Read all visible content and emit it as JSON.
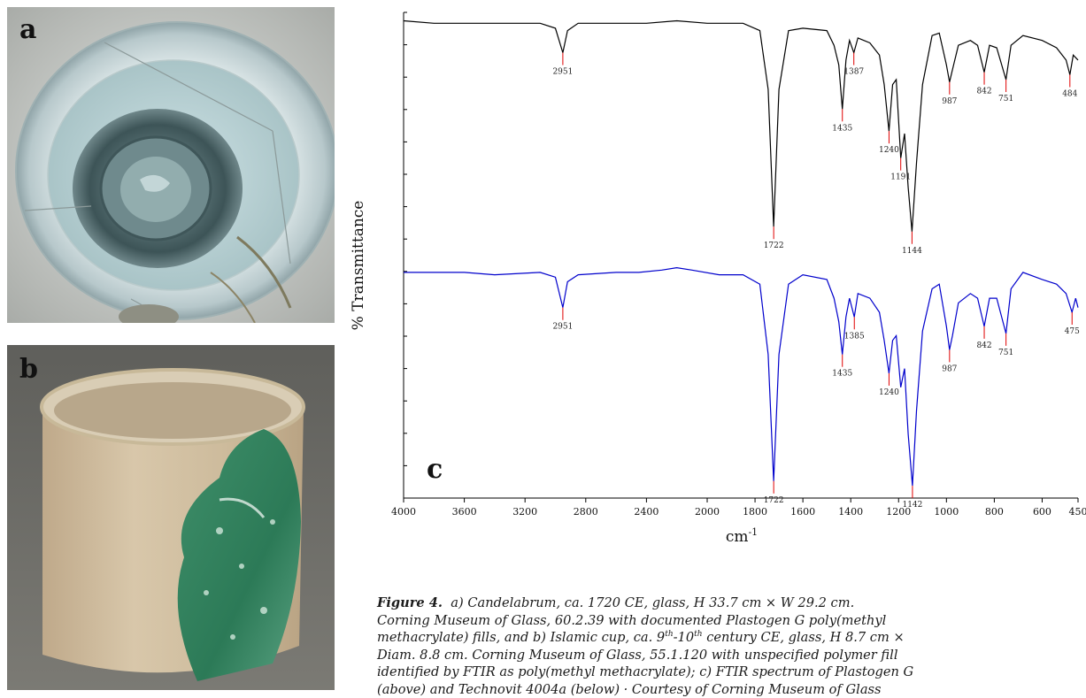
{
  "panels": {
    "a_label": "a",
    "b_label": "b",
    "c_label": "c"
  },
  "chart_data": {
    "type": "line",
    "xlabel": "cm",
    "xlabel_sup": "-1",
    "ylabel": "% Transmittance",
    "xlim": [
      4000,
      450
    ],
    "x_ticks": [
      4000,
      3600,
      3200,
      2800,
      2400,
      2000,
      1800,
      1600,
      1400,
      1200,
      1000,
      800,
      600,
      450
    ],
    "grid": false,
    "series": [
      {
        "color": "#000000",
        "peak_labels": [
          "2951",
          "1722",
          "1435",
          "1387",
          "1240",
          "1191",
          "1144",
          "987",
          "842",
          "751",
          "484"
        ],
        "points": [
          [
            4000,
            98
          ],
          [
            3800,
            97
          ],
          [
            3600,
            97
          ],
          [
            3400,
            97
          ],
          [
            3100,
            97
          ],
          [
            3000,
            95
          ],
          [
            2951,
            85
          ],
          [
            2920,
            94
          ],
          [
            2850,
            97
          ],
          [
            2400,
            97
          ],
          [
            2200,
            98
          ],
          [
            2000,
            97
          ],
          [
            1850,
            97
          ],
          [
            1780,
            94
          ],
          [
            1745,
            70
          ],
          [
            1722,
            14
          ],
          [
            1700,
            70
          ],
          [
            1660,
            94
          ],
          [
            1600,
            95
          ],
          [
            1500,
            94
          ],
          [
            1470,
            88
          ],
          [
            1450,
            80
          ],
          [
            1435,
            62
          ],
          [
            1420,
            82
          ],
          [
            1405,
            90
          ],
          [
            1387,
            85
          ],
          [
            1370,
            91
          ],
          [
            1320,
            89
          ],
          [
            1280,
            84
          ],
          [
            1260,
            72
          ],
          [
            1240,
            53
          ],
          [
            1225,
            72
          ],
          [
            1210,
            74
          ],
          [
            1191,
            42
          ],
          [
            1175,
            52
          ],
          [
            1160,
            30
          ],
          [
            1144,
            12
          ],
          [
            1125,
            40
          ],
          [
            1100,
            72
          ],
          [
            1060,
            92
          ],
          [
            1030,
            93
          ],
          [
            1000,
            80
          ],
          [
            987,
            73
          ],
          [
            975,
            78
          ],
          [
            950,
            88
          ],
          [
            900,
            90
          ],
          [
            870,
            88
          ],
          [
            842,
            77
          ],
          [
            820,
            88
          ],
          [
            790,
            87
          ],
          [
            751,
            74
          ],
          [
            730,
            88
          ],
          [
            680,
            92
          ],
          [
            600,
            90
          ],
          [
            540,
            87
          ],
          [
            500,
            82
          ],
          [
            484,
            76
          ],
          [
            470,
            84
          ],
          [
            450,
            82
          ]
        ]
      },
      {
        "color": "#0000cc",
        "peak_labels": [
          "2951",
          "1722",
          "1435",
          "1385",
          "1240",
          "1142",
          "987",
          "842",
          "751",
          "475"
        ],
        "points": [
          [
            4000,
            97
          ],
          [
            3800,
            97
          ],
          [
            3600,
            97
          ],
          [
            3400,
            96
          ],
          [
            3100,
            97
          ],
          [
            3000,
            95
          ],
          [
            2951,
            82
          ],
          [
            2920,
            93
          ],
          [
            2850,
            96
          ],
          [
            2600,
            97
          ],
          [
            2450,
            97
          ],
          [
            2300,
            98
          ],
          [
            2200,
            99
          ],
          [
            2100,
            98
          ],
          [
            1950,
            96
          ],
          [
            1850,
            96
          ],
          [
            1780,
            92
          ],
          [
            1745,
            62
          ],
          [
            1722,
            8
          ],
          [
            1700,
            62
          ],
          [
            1660,
            92
          ],
          [
            1600,
            96
          ],
          [
            1500,
            94
          ],
          [
            1470,
            86
          ],
          [
            1450,
            76
          ],
          [
            1435,
            62
          ],
          [
            1420,
            78
          ],
          [
            1405,
            86
          ],
          [
            1385,
            78
          ],
          [
            1370,
            88
          ],
          [
            1320,
            86
          ],
          [
            1280,
            80
          ],
          [
            1260,
            68
          ],
          [
            1240,
            54
          ],
          [
            1225,
            68
          ],
          [
            1210,
            70
          ],
          [
            1191,
            48
          ],
          [
            1175,
            56
          ],
          [
            1160,
            28
          ],
          [
            1142,
            6
          ],
          [
            1125,
            38
          ],
          [
            1100,
            72
          ],
          [
            1060,
            90
          ],
          [
            1030,
            92
          ],
          [
            1000,
            74
          ],
          [
            987,
            64
          ],
          [
            975,
            70
          ],
          [
            950,
            84
          ],
          [
            900,
            88
          ],
          [
            870,
            86
          ],
          [
            842,
            74
          ],
          [
            820,
            86
          ],
          [
            790,
            86
          ],
          [
            751,
            71
          ],
          [
            730,
            90
          ],
          [
            680,
            97
          ],
          [
            600,
            94
          ],
          [
            540,
            92
          ],
          [
            500,
            88
          ],
          [
            475,
            80
          ],
          [
            460,
            86
          ],
          [
            450,
            82
          ]
        ]
      }
    ]
  },
  "caption": {
    "fig_label": "Figure 4.",
    "line1": "a) Candelabrum, ca. 1720 CE, glass, H 33.7 cm × W 29.2 cm.",
    "line2": "Corning Museum of Glass, 60.2.39 with documented Plastogen G poly(methyl",
    "line3a": "methacrylate) fills, and  b) Islamic cup, ca. 9",
    "line3_sup1": "th",
    "line3b": "-10",
    "line3_sup2": "th",
    "line3c": " century CE, glass, H 8.7 cm ×",
    "line4": "Diam. 8.8 cm. Corning Museum of Glass, 55.1.120 with unspecified polymer fill",
    "line5": "identified by FTIR as poly(methyl methacrylate);  c) FTIR spectrum of Plastogen G",
    "line6": "(above) and Technovit 4004a (below)  ·  Courtesy of Corning Museum of Glass"
  }
}
